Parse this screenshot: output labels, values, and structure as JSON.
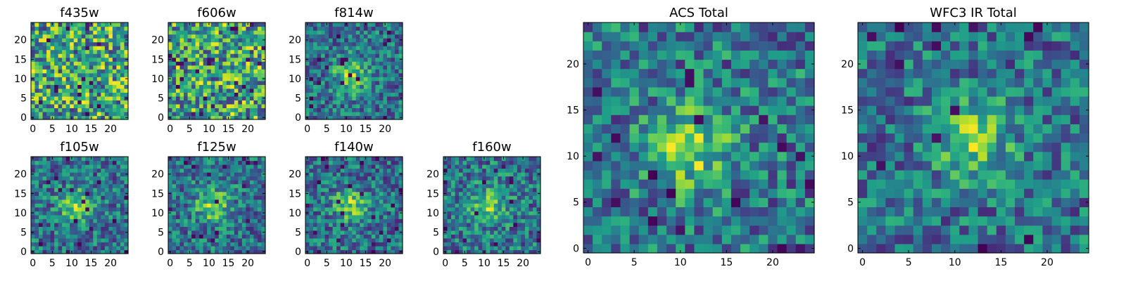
{
  "chart_data": [
    {
      "type": "heatmap",
      "title": "f435w",
      "size": 25,
      "xticks": [
        "0",
        "5",
        "10",
        "15",
        "20"
      ],
      "yticks": [
        "0",
        "5",
        "10",
        "15",
        "20"
      ],
      "colormap": "viridis",
      "source_peak": null,
      "seed": 11
    },
    {
      "type": "heatmap",
      "title": "f606w",
      "size": 25,
      "xticks": [
        "0",
        "5",
        "10",
        "15",
        "20"
      ],
      "yticks": [
        "0",
        "5",
        "10",
        "15",
        "20"
      ],
      "colormap": "viridis",
      "source_peak": null,
      "seed": 23
    },
    {
      "type": "heatmap",
      "title": "f814w",
      "size": 25,
      "xticks": [
        "0",
        "5",
        "10",
        "15",
        "20"
      ],
      "yticks": [
        "0",
        "5",
        "10",
        "15",
        "20"
      ],
      "colormap": "viridis",
      "source_peak": [
        11,
        11
      ],
      "seed": 37
    },
    {
      "type": "heatmap",
      "title": "f105w",
      "size": 25,
      "xticks": [
        "0",
        "5",
        "10",
        "15",
        "20"
      ],
      "yticks": [
        "0",
        "5",
        "10",
        "15",
        "20"
      ],
      "colormap": "viridis",
      "source_peak": [
        11,
        12
      ],
      "seed": 41
    },
    {
      "type": "heatmap",
      "title": "f125w",
      "size": 25,
      "xticks": [
        "0",
        "5",
        "10",
        "15",
        "20"
      ],
      "yticks": [
        "0",
        "5",
        "10",
        "15",
        "20"
      ],
      "colormap": "viridis",
      "source_peak": [
        11,
        12
      ],
      "seed": 53
    },
    {
      "type": "heatmap",
      "title": "f140w",
      "size": 25,
      "xticks": [
        "0",
        "5",
        "10",
        "15",
        "20"
      ],
      "yticks": [
        "0",
        "5",
        "10",
        "15",
        "20"
      ],
      "colormap": "viridis",
      "source_peak": [
        11,
        12
      ],
      "seed": 67
    },
    {
      "type": "heatmap",
      "title": "f160w",
      "size": 25,
      "xticks": [
        "0",
        "5",
        "10",
        "15",
        "20"
      ],
      "yticks": [
        "0",
        "5",
        "10",
        "15",
        "20"
      ],
      "colormap": "viridis",
      "source_peak": [
        11,
        12
      ],
      "seed": 79
    },
    {
      "type": "heatmap",
      "title": "ACS Total",
      "size": 25,
      "xticks": [
        "0",
        "5",
        "10",
        "15",
        "20"
      ],
      "yticks": [
        "0",
        "5",
        "10",
        "15",
        "20"
      ],
      "colormap": "viridis",
      "source_peak": [
        11,
        11
      ],
      "seed": 83
    },
    {
      "type": "heatmap",
      "title": "WFC3 IR Total",
      "size": 25,
      "xticks": [
        "0",
        "5",
        "10",
        "15",
        "20"
      ],
      "yticks": [
        "0",
        "5",
        "10",
        "15",
        "20"
      ],
      "colormap": "viridis",
      "source_peak": [
        12,
        12
      ],
      "seed": 97
    }
  ]
}
